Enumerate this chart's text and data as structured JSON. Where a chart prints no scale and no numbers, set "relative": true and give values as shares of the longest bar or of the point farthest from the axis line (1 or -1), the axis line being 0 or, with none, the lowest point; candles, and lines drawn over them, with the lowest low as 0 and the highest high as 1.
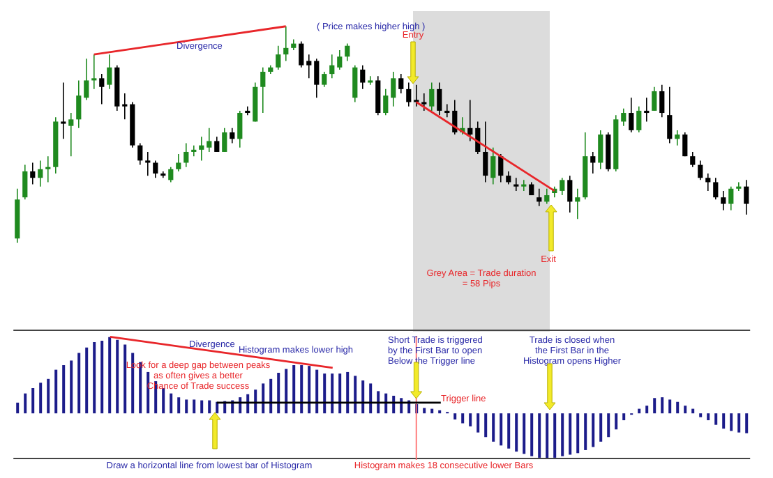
{
  "chart_data": [
    {
      "type": "candlestick",
      "relative": true,
      "tick_labels": false,
      "categories": [
        null,
        null,
        null,
        null,
        null,
        null,
        null,
        null,
        null,
        null,
        null,
        null,
        null,
        null,
        null,
        null,
        null,
        null,
        null,
        null,
        null,
        null,
        null,
        null,
        null,
        null,
        null,
        null,
        null,
        null,
        null,
        null,
        null,
        null,
        null,
        null,
        null,
        null,
        null,
        null,
        null,
        null,
        null,
        null,
        null,
        null,
        null,
        null,
        null,
        null,
        null,
        null,
        null,
        null,
        null,
        null,
        null,
        null,
        null,
        null,
        null,
        null,
        null,
        null,
        null,
        null,
        null,
        null,
        null,
        null,
        null,
        null,
        null,
        null,
        null,
        null,
        null,
        null,
        null,
        null,
        null,
        null,
        null,
        null,
        null,
        null,
        null,
        null,
        null,
        null,
        null,
        null,
        null,
        null,
        null,
        null
      ],
      "ohlc": [
        [
          0.02,
          0.25,
          0,
          0.2
        ],
        [
          0.21,
          0.36,
          0.2,
          0.33
        ],
        [
          0.33,
          0.37,
          0.27,
          0.3
        ],
        [
          0.3,
          0.38,
          0.26,
          0.34
        ],
        [
          0.34,
          0.4,
          0.28,
          0.35
        ],
        [
          0.35,
          0.58,
          0.32,
          0.56
        ],
        [
          0.56,
          0.74,
          0.48,
          0.55
        ],
        [
          0.54,
          0.6,
          0.4,
          0.57
        ],
        [
          0.57,
          0.75,
          0.53,
          0.68
        ],
        [
          0.67,
          0.85,
          0.66,
          0.75
        ],
        [
          0.75,
          0.87,
          0.71,
          0.76
        ],
        [
          0.76,
          0.78,
          0.64,
          0.72
        ],
        [
          0.73,
          0.87,
          0.71,
          0.81
        ],
        [
          0.81,
          0.82,
          0.61,
          0.63
        ],
        [
          0.64,
          0.69,
          0.57,
          0.63
        ],
        [
          0.64,
          0.65,
          0.44,
          0.45
        ],
        [
          0.45,
          0.46,
          0.36,
          0.38
        ],
        [
          0.38,
          0.42,
          0.31,
          0.37
        ],
        [
          0.37,
          0.38,
          0.3,
          0.32
        ],
        [
          0.32,
          0.33,
          0.3,
          0.31
        ],
        [
          0.29,
          0.35,
          0.28,
          0.34
        ],
        [
          0.34,
          0.41,
          0.33,
          0.37
        ],
        [
          0.37,
          0.46,
          0.35,
          0.42
        ],
        [
          0.42,
          0.45,
          0.4,
          0.43
        ],
        [
          0.43,
          0.49,
          0.38,
          0.45
        ],
        [
          0.44,
          0.53,
          0.42,
          0.47
        ],
        [
          0.47,
          0.49,
          0.42,
          0.42
        ],
        [
          0.42,
          0.53,
          0.42,
          0.51
        ],
        [
          0.51,
          0.53,
          0.46,
          0.48
        ],
        [
          0.48,
          0.61,
          0.44,
          0.6
        ],
        [
          0.61,
          0.63,
          0.59,
          0.6
        ],
        [
          0.56,
          0.74,
          0.56,
          0.72
        ],
        [
          0.72,
          0.81,
          0.6,
          0.79
        ],
        [
          0.79,
          0.82,
          0.78,
          0.81
        ],
        [
          0.81,
          0.91,
          0.8,
          0.87
        ],
        [
          0.87,
          1,
          0.84,
          0.9
        ],
        [
          0.9,
          0.94,
          0.89,
          0.92
        ],
        [
          0.92,
          0.93,
          0.81,
          0.82
        ],
        [
          0.84,
          0.87,
          0.76,
          0.82
        ],
        [
          0.84,
          0.85,
          0.67,
          0.73
        ],
        [
          0.73,
          0.79,
          0.72,
          0.78
        ],
        [
          0.78,
          0.87,
          0.76,
          0.82
        ],
        [
          0.81,
          0.89,
          0.8,
          0.86
        ],
        [
          0.86,
          0.92,
          0.84,
          0.91
        ],
        [
          0.67,
          0.82,
          0.65,
          0.81
        ],
        [
          0.8,
          0.82,
          0.71,
          0.74
        ],
        [
          0.74,
          0.77,
          0.73,
          0.75
        ],
        [
          0.75,
          0.77,
          0.59,
          0.6
        ],
        [
          0.6,
          0.71,
          0.59,
          0.68
        ],
        [
          0.67,
          0.79,
          0.63,
          0.76
        ],
        [
          0.76,
          0.78,
          0.69,
          0.71
        ],
        [
          0.71,
          0.74,
          0.63,
          0.65
        ],
        [
          0.66,
          0.73,
          0.63,
          0.65
        ],
        [
          0.65,
          0.69,
          0.61,
          0.64
        ],
        [
          0.63,
          0.74,
          0.61,
          0.71
        ],
        [
          0.71,
          0.74,
          0.59,
          0.61
        ],
        [
          0.61,
          0.64,
          0.58,
          0.6
        ],
        [
          0.61,
          0.66,
          0.5,
          0.51
        ],
        [
          0.51,
          0.58,
          0.5,
          0.53
        ],
        [
          0.53,
          0.66,
          0.47,
          0.5
        ],
        [
          0.53,
          0.56,
          0.41,
          0.42
        ],
        [
          0.42,
          0.56,
          0.28,
          0.31
        ],
        [
          0.3,
          0.44,
          0.27,
          0.4
        ],
        [
          0.4,
          0.41,
          0.28,
          0.31
        ],
        [
          0.31,
          0.33,
          0.27,
          0.28
        ],
        [
          0.27,
          0.3,
          0.24,
          0.26
        ],
        [
          0.26,
          0.29,
          0.24,
          0.27
        ],
        [
          0.27,
          0.28,
          0.22,
          0.22
        ],
        [
          0.21,
          0.25,
          0.17,
          0.19
        ],
        [
          0.19,
          0.25,
          0.18,
          0.22
        ],
        [
          0.23,
          0.26,
          0.21,
          0.25
        ],
        [
          0.24,
          0.3,
          0.22,
          0.29
        ],
        [
          0.29,
          0.31,
          0.14,
          0.19
        ],
        [
          0.19,
          0.25,
          0.11,
          0.21
        ],
        [
          0.21,
          0.51,
          0.2,
          0.4
        ],
        [
          0.4,
          0.42,
          0.32,
          0.37
        ],
        [
          0.37,
          0.52,
          0.34,
          0.5
        ],
        [
          0.5,
          0.51,
          0.33,
          0.34
        ],
        [
          0.34,
          0.59,
          0.33,
          0.57
        ],
        [
          0.56,
          0.62,
          0.54,
          0.6
        ],
        [
          0.6,
          0.67,
          0.51,
          0.52
        ],
        [
          0.52,
          0.63,
          0.51,
          0.61
        ],
        [
          0.61,
          0.67,
          0.56,
          0.6
        ],
        [
          0.61,
          0.72,
          0.61,
          0.7
        ],
        [
          0.7,
          0.73,
          0.58,
          0.6
        ],
        [
          0.59,
          0.72,
          0.46,
          0.48
        ],
        [
          0.48,
          0.52,
          0.45,
          0.5
        ],
        [
          0.5,
          0.51,
          0.4,
          0.4
        ],
        [
          0.4,
          0.42,
          0.35,
          0.36
        ],
        [
          0.36,
          0.38,
          0.29,
          0.3
        ],
        [
          0.3,
          0.32,
          0.24,
          0.28
        ],
        [
          0.28,
          0.3,
          0.2,
          0.21
        ],
        [
          0.21,
          0.24,
          0.15,
          0.18
        ],
        [
          0.18,
          0.26,
          0.15,
          0.25
        ],
        [
          0.25,
          0.28,
          0.24,
          0.26
        ],
        [
          0.26,
          0.29,
          0.13,
          0.18
        ]
      ],
      "colors": [
        "#1f8a1f",
        "#1f8a1f",
        "#000000",
        "#1f8a1f",
        "#1f8a1f",
        "#1f8a1f",
        "#000000",
        "#1f8a1f",
        "#1f8a1f",
        "#1f8a1f",
        "#1f8a1f",
        "#000000",
        "#1f8a1f",
        "#000000",
        "#000000",
        "#000000",
        "#000000",
        "#000000",
        "#000000",
        "#000000",
        "#1f8a1f",
        "#1f8a1f",
        "#1f8a1f",
        "#1f8a1f",
        "#1f8a1f",
        "#1f8a1f",
        "#000000",
        "#1f8a1f",
        "#000000",
        "#1f8a1f",
        "#000000",
        "#1f8a1f",
        "#1f8a1f",
        "#1f8a1f",
        "#1f8a1f",
        "#1f8a1f",
        "#1f8a1f",
        "#000000",
        "#000000",
        "#000000",
        "#1f8a1f",
        "#1f8a1f",
        "#1f8a1f",
        "#1f8a1f",
        "#1f8a1f",
        "#000000",
        "#1f8a1f",
        "#000000",
        "#1f8a1f",
        "#1f8a1f",
        "#000000",
        "#000000",
        "#000000",
        "#000000",
        "#1f8a1f",
        "#000000",
        "#000000",
        "#000000",
        "#1f8a1f",
        "#000000",
        "#000000",
        "#000000",
        "#1f8a1f",
        "#000000",
        "#000000",
        "#000000",
        "#1f8a1f",
        "#000000",
        "#000000",
        "#1f8a1f",
        "#1f8a1f",
        "#1f8a1f",
        "#000000",
        "#1f8a1f",
        "#1f8a1f",
        "#000000",
        "#1f8a1f",
        "#000000",
        "#1f8a1f",
        "#1f8a1f",
        "#000000",
        "#1f8a1f",
        "#000000",
        "#1f8a1f",
        "#000000",
        "#000000",
        "#1f8a1f",
        "#000000",
        "#000000",
        "#000000",
        "#000000",
        "#000000",
        "#000000",
        "#1f8a1f",
        "#1f8a1f",
        "#000000"
      ],
      "series": [
        {
          "type": "line",
          "color": "#e8262a",
          "values": [
            null,
            null,
            null,
            null,
            null,
            null,
            null,
            null,
            null,
            null,
            0.87,
            null,
            null,
            null,
            null,
            null,
            null,
            null,
            null,
            null,
            null,
            null,
            null,
            null,
            null,
            null,
            null,
            null,
            null,
            null,
            null,
            null,
            null,
            null,
            null,
            1,
            null,
            null,
            null,
            null,
            null,
            null,
            null,
            null,
            null,
            null,
            null,
            null,
            null,
            null,
            null,
            null,
            null,
            null,
            null,
            null,
            null,
            null,
            null,
            null,
            null,
            null,
            null,
            null,
            null,
            null,
            null,
            null,
            null,
            null,
            null,
            null,
            null,
            null,
            null,
            null,
            null,
            null,
            null,
            null,
            null,
            null,
            null,
            null,
            null,
            null,
            null,
            null,
            null,
            null,
            null,
            null,
            null,
            null,
            null,
            null
          ]
        },
        {
          "type": "line",
          "color": "#e8262a",
          "values": [
            null,
            null,
            null,
            null,
            null,
            null,
            null,
            null,
            null,
            null,
            null,
            null,
            null,
            null,
            null,
            null,
            null,
            null,
            null,
            null,
            null,
            null,
            null,
            null,
            null,
            null,
            null,
            null,
            null,
            null,
            null,
            null,
            null,
            null,
            null,
            null,
            null,
            null,
            null,
            null,
            null,
            null,
            null,
            null,
            null,
            null,
            null,
            null,
            null,
            null,
            null,
            null,
            0.65,
            null,
            null,
            null,
            null,
            null,
            null,
            null,
            null,
            null,
            null,
            null,
            null,
            null,
            null,
            null,
            null,
            null,
            0.24,
            null,
            null,
            null,
            null,
            null,
            null,
            null,
            null,
            null,
            null,
            null,
            null,
            null,
            null,
            null,
            null,
            null,
            null,
            null,
            null,
            null,
            null,
            null,
            null,
            null
          ]
        }
      ],
      "annotations": [
        "Divergence",
        "( Price makes higher high )",
        "Entry",
        "Exit",
        "Grey Area = Trade duration\n= 58 Pips"
      ]
    },
    {
      "type": "bar",
      "relative": true,
      "tick_labels": false,
      "color": "#1c1c8a",
      "categories": [
        null,
        null,
        null,
        null,
        null,
        null,
        null,
        null,
        null,
        null,
        null,
        null,
        null,
        null,
        null,
        null,
        null,
        null,
        null,
        null,
        null,
        null,
        null,
        null,
        null,
        null,
        null,
        null,
        null,
        null,
        null,
        null,
        null,
        null,
        null,
        null,
        null,
        null,
        null,
        null,
        null,
        null,
        null,
        null,
        null,
        null,
        null,
        null,
        null,
        null,
        null,
        null,
        null,
        null,
        null,
        null,
        null,
        null,
        null,
        null,
        null,
        null,
        null,
        null,
        null,
        null,
        null,
        null,
        null,
        null,
        null,
        null,
        null,
        null,
        null,
        null,
        null,
        null,
        null,
        null,
        null,
        null,
        null,
        null,
        null,
        null,
        null,
        null,
        null,
        null,
        null,
        null,
        null,
        null,
        null,
        null
      ],
      "values": [
        0.14,
        0.26,
        0.33,
        0.4,
        0.45,
        0.57,
        0.63,
        0.69,
        0.79,
        0.86,
        0.93,
        0.95,
        1,
        0.96,
        0.9,
        0.79,
        0.67,
        0.54,
        0.42,
        0.33,
        0.26,
        0.21,
        0.18,
        0.18,
        0.17,
        0.17,
        0.15,
        0.16,
        0.17,
        0.21,
        0.25,
        0.31,
        0.39,
        0.45,
        0.53,
        0.58,
        0.63,
        0.63,
        0.62,
        0.57,
        0.52,
        0.52,
        0.52,
        0.54,
        0.49,
        0.43,
        0.39,
        0.29,
        0.26,
        0.23,
        0.2,
        0.17,
        0.12,
        0.07,
        0.06,
        0.04,
        0.01,
        -0.08,
        -0.13,
        -0.17,
        -0.25,
        -0.31,
        -0.37,
        -0.42,
        -0.46,
        -0.5,
        -0.53,
        -0.56,
        -0.58,
        -0.59,
        -0.58,
        -0.56,
        -0.54,
        -0.52,
        -0.48,
        -0.44,
        -0.37,
        -0.31,
        -0.21,
        -0.09,
        -0.01,
        0.06,
        0.1,
        0.2,
        0.21,
        0.18,
        0.15,
        0.1,
        0.06,
        -0.05,
        -0.09,
        -0.15,
        -0.2,
        -0.23,
        -0.25,
        -0.26
      ],
      "annotations": [
        "Divergence",
        "Histogram makes lower high",
        "Look for a deep gap between peaks\nas often gives a better\nChance of Trade success",
        "Draw a horizontal line from lowest bar of Histogram",
        "Short Trade is triggered\nby the First Bar to open\nBelow the Trigger line",
        "Trigger line",
        "Trade is closed when\nthe First Bar in the\nHistogram opens Higher",
        "Histogram makes 18 consecutive lower Bars"
      ]
    }
  ]
}
